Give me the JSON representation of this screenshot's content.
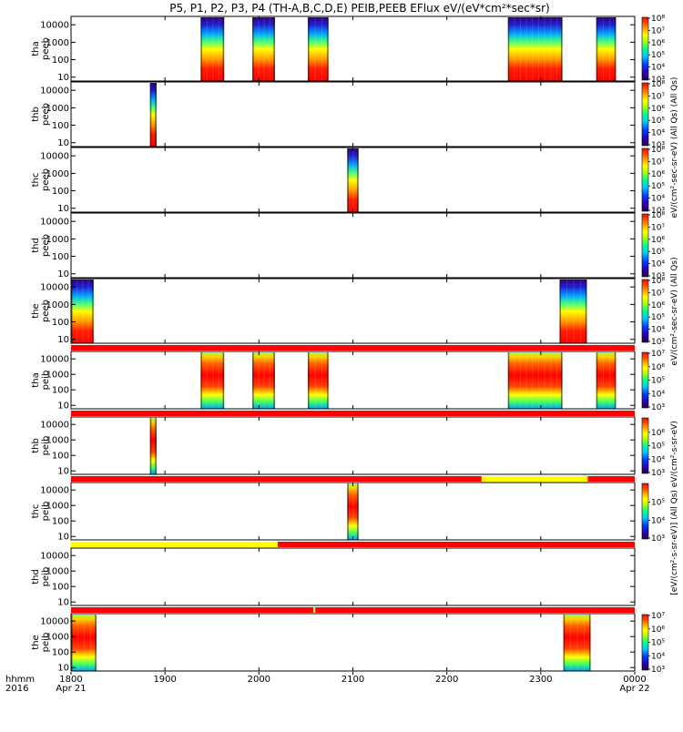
{
  "chart_data": {
    "type": "heatmap",
    "title": "P5, P1, P2, P3, P4 (TH-A,B,C,D,E) PEIB,PEEB EFlux eV/(eV*cm²*sec*sr)",
    "time_axis": {
      "corner_label_line1": "hhmm",
      "corner_label_line2": "2016",
      "ticks": [
        "1800",
        "1900",
        "2000",
        "2100",
        "2200",
        "2300",
        "0000"
      ],
      "tick_hours": [
        18,
        19,
        20,
        21,
        22,
        23,
        24
      ],
      "date_labels": [
        {
          "at_hour": 18,
          "text": "Apr 21"
        },
        {
          "at_hour": 24,
          "text": "Apr 22"
        }
      ],
      "range_hours": [
        18,
        24
      ]
    },
    "energy_axis": {
      "scale": "log",
      "unit": "eV",
      "ticks": [
        "10",
        "100",
        "1000",
        "10000"
      ],
      "tick_values": [
        10,
        100,
        1000,
        10000
      ],
      "range": [
        6,
        30000
      ]
    },
    "panels": [
      {
        "probe": "tha",
        "instrument": "peeb",
        "species": "electron",
        "flag_bar": null,
        "colorbar": {
          "ticks": [
            "10³",
            "10⁴",
            "10⁵",
            "10⁶",
            "10⁷",
            "10⁸"
          ],
          "range": [
            1000,
            100000000
          ]
        },
        "intervals_hours": [
          [
            19.38,
            19.63
          ],
          [
            19.93,
            20.17
          ],
          [
            20.52,
            20.74
          ],
          [
            22.65,
            23.23
          ],
          [
            23.59,
            23.8
          ]
        ]
      },
      {
        "probe": "thb",
        "instrument": "peeb",
        "species": "electron",
        "flag_bar": null,
        "colorbar": {
          "ticks": [
            "10³",
            "10⁴",
            "10⁵",
            "10⁶",
            "10⁷",
            "10⁸"
          ],
          "range": [
            1000,
            100000000
          ]
        },
        "intervals_hours": [
          [
            18.84,
            18.91
          ]
        ]
      },
      {
        "probe": "thc",
        "instrument": "peeb",
        "species": "electron",
        "flag_bar": null,
        "colorbar": {
          "ticks": [
            "10³",
            "10⁴",
            "10⁵",
            "10⁶",
            "10⁷",
            "10⁸"
          ],
          "range": [
            1000,
            100000000
          ]
        },
        "intervals_hours": [
          [
            20.94,
            21.06
          ]
        ]
      },
      {
        "probe": "thd",
        "instrument": "peeb",
        "species": "electron",
        "flag_bar": null,
        "colorbar": {
          "ticks": [
            "10³",
            "10⁴",
            "10⁵",
            "10⁶",
            "10⁷",
            "10⁸"
          ],
          "range": [
            1000,
            100000000
          ]
        },
        "intervals_hours": []
      },
      {
        "probe": "the",
        "instrument": "peeb",
        "species": "electron",
        "flag_bar": null,
        "colorbar": {
          "ticks": [
            "10³",
            "10⁴",
            "10⁵",
            "10⁶",
            "10⁷",
            "10⁸"
          ],
          "range": [
            1000,
            100000000
          ]
        },
        "intervals_hours": [
          [
            18.0,
            18.24
          ],
          [
            23.2,
            23.49
          ]
        ]
      },
      {
        "probe": "tha",
        "instrument": "peib",
        "species": "ion",
        "flag_bar": {
          "segments": [
            {
              "from": 18.0,
              "to": 24.0,
              "color": "red"
            }
          ]
        },
        "colorbar": {
          "ticks": [
            "10³",
            "10⁴",
            "10⁵",
            "10⁶",
            "10⁷"
          ],
          "range": [
            1000,
            10000000
          ]
        },
        "intervals_hours": [
          [
            19.38,
            19.63
          ],
          [
            19.93,
            20.17
          ],
          [
            20.52,
            20.74
          ],
          [
            22.65,
            23.23
          ],
          [
            23.59,
            23.8
          ]
        ]
      },
      {
        "probe": "thb",
        "instrument": "peib",
        "species": "ion",
        "flag_bar": {
          "segments": [
            {
              "from": 18.0,
              "to": 24.0,
              "color": "red"
            }
          ]
        },
        "colorbar": {
          "ticks": [
            "10³",
            "10⁴",
            "10⁵",
            "10⁶"
          ],
          "range": [
            1000,
            10000000
          ]
        },
        "intervals_hours": [
          [
            18.84,
            18.91
          ]
        ]
      },
      {
        "probe": "thc",
        "instrument": "peib",
        "species": "ion",
        "flag_bar": {
          "segments": [
            {
              "from": 18.0,
              "to": 22.37,
              "color": "red"
            },
            {
              "from": 22.37,
              "to": 23.5,
              "color": "yellow"
            },
            {
              "from": 23.5,
              "to": 24.0,
              "color": "red"
            }
          ]
        },
        "colorbar": {
          "ticks": [
            "10³",
            "10⁴",
            "10⁵"
          ],
          "range": [
            1000,
            1000000
          ]
        },
        "intervals_hours": [
          [
            20.94,
            21.06
          ]
        ]
      },
      {
        "probe": "thd",
        "instrument": "peib",
        "species": "ion",
        "flag_bar": {
          "segments": [
            {
              "from": 18.0,
              "to": 20.2,
              "color": "yellow"
            },
            {
              "from": 20.2,
              "to": 24.0,
              "color": "red"
            }
          ]
        },
        "colorbar": null,
        "intervals_hours": []
      },
      {
        "probe": "the",
        "instrument": "peib",
        "species": "ion",
        "flag_bar": {
          "segments": [
            {
              "from": 18.0,
              "to": 20.58,
              "color": "red"
            },
            {
              "from": 20.58,
              "to": 20.6,
              "color": "yellow"
            },
            {
              "from": 20.6,
              "to": 24.0,
              "color": "red"
            }
          ]
        },
        "colorbar": {
          "ticks": [
            "10³",
            "10⁴",
            "10⁵",
            "10⁶",
            "10⁷"
          ],
          "range": [
            1000,
            10000000
          ]
        },
        "intervals_hours": [
          [
            18.0,
            18.27
          ],
          [
            23.24,
            23.53
          ]
        ]
      }
    ],
    "right_labels": [
      {
        "for_panels": [
          0,
          3
        ],
        "text": "eV/(cm²-sec-sr-eV) (All Qs) (All Qs)"
      },
      {
        "for_panels": [
          4,
          4
        ],
        "text": "eV/(cm²-sec-sr-eV) (All Qs)"
      },
      {
        "for_panels": [
          5,
          9
        ],
        "text": "[eV/(cm²-s-sr-eV)] (All Qs) eV/(cm²-s-sr-eV)"
      }
    ]
  }
}
